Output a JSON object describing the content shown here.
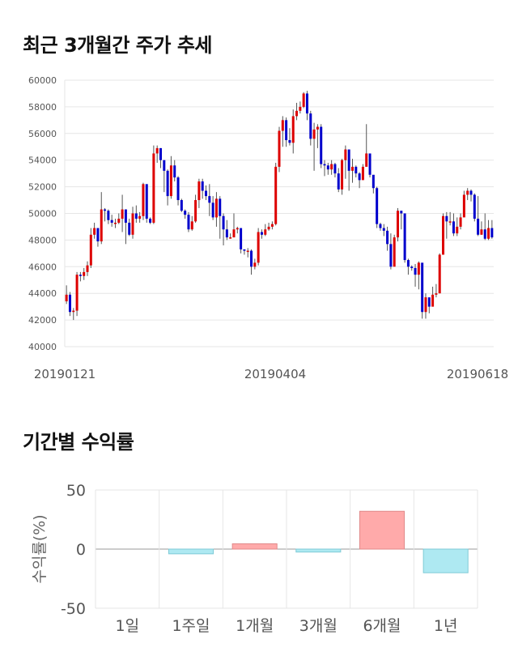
{
  "titles": {
    "price_chart": "최근 3개월간 주가 추세",
    "returns_chart": "기간별 수익률"
  },
  "chart_data": [
    {
      "type": "candlestick",
      "title": "최근 3개월간 주가 추세",
      "x_tick_labels": [
        "20190121",
        "20190404",
        "20190618"
      ],
      "ylim": [
        40000,
        60000
      ],
      "y_ticks": [
        40000,
        42000,
        44000,
        46000,
        48000,
        50000,
        52000,
        54000,
        56000,
        58000,
        60000
      ],
      "grid": true,
      "colors": {
        "up": "#dd0000",
        "down": "#0000cc",
        "wick": "#555555",
        "grid": "#e6e6e6"
      },
      "candles": [
        [
          43400,
          43900,
          44600,
          43200
        ],
        [
          43900,
          42600,
          44100,
          42300
        ],
        [
          42600,
          42700,
          42900,
          42000
        ],
        [
          42700,
          45400,
          45600,
          42300
        ],
        [
          45400,
          45300,
          45600,
          44900
        ],
        [
          45300,
          45600,
          45900,
          45000
        ],
        [
          45600,
          46100,
          46400,
          45300
        ],
        [
          46100,
          48400,
          48900,
          45900
        ],
        [
          48400,
          48900,
          49300,
          48100
        ],
        [
          48900,
          47900,
          48900,
          47500
        ],
        [
          47900,
          50300,
          51600,
          47700
        ],
        [
          50300,
          50200,
          50400,
          49400
        ],
        [
          50200,
          49500,
          50300,
          49200
        ],
        [
          49500,
          49300,
          49900,
          49000
        ],
        [
          49300,
          49300,
          49600,
          48900
        ],
        [
          49300,
          49600,
          50000,
          49200
        ],
        [
          49600,
          50300,
          51400,
          48600
        ],
        [
          50300,
          49300,
          50300,
          47700
        ],
        [
          49300,
          48400,
          49600,
          48300
        ],
        [
          48400,
          50000,
          50500,
          48100
        ],
        [
          50000,
          49600,
          50600,
          49300
        ],
        [
          49600,
          49800,
          50100,
          49300
        ],
        [
          49800,
          52200,
          52300,
          49500
        ],
        [
          52200,
          49600,
          49800,
          49300
        ],
        [
          49600,
          49300,
          49700,
          49200
        ],
        [
          49300,
          54500,
          55100,
          49200
        ],
        [
          54500,
          54900,
          55100,
          53800
        ],
        [
          54900,
          54000,
          54900,
          53400
        ],
        [
          54000,
          53200,
          53900,
          51600
        ],
        [
          53200,
          51300,
          53300,
          50600
        ],
        [
          51300,
          53600,
          54300,
          51100
        ],
        [
          53600,
          52700,
          54000,
          52400
        ],
        [
          52700,
          51000,
          52800,
          50600
        ],
        [
          51000,
          50200,
          51100,
          50100
        ],
        [
          50200,
          49900,
          50300,
          49600
        ],
        [
          49900,
          48800,
          50100,
          48600
        ],
        [
          48800,
          49400,
          49800,
          48700
        ],
        [
          49400,
          51000,
          51400,
          49300
        ],
        [
          51000,
          52400,
          52600,
          50400
        ],
        [
          52400,
          51700,
          52600,
          51100
        ],
        [
          51700,
          51300,
          52100,
          51000
        ],
        [
          51300,
          50800,
          52200,
          49800
        ],
        [
          50800,
          49700,
          51300,
          49500
        ],
        [
          49700,
          51100,
          51600,
          49000
        ],
        [
          51100,
          49800,
          51300,
          48100
        ],
        [
          49800,
          48800,
          50000,
          47600
        ],
        [
          48800,
          48200,
          49500,
          48000
        ],
        [
          48200,
          48200,
          48500,
          48100
        ],
        [
          48200,
          48800,
          50000,
          48200
        ],
        [
          48800,
          48900,
          49000,
          48500
        ],
        [
          48900,
          47300,
          47500,
          47000
        ],
        [
          47300,
          47200,
          47300,
          46900
        ],
        [
          47200,
          47200,
          47400,
          46700
        ],
        [
          47200,
          46000,
          47300,
          45400
        ],
        [
          46000,
          46300,
          46600,
          45800
        ],
        [
          46300,
          48600,
          48900,
          46100
        ],
        [
          48600,
          48400,
          48800,
          48100
        ],
        [
          48400,
          48800,
          49200,
          48300
        ],
        [
          48800,
          49000,
          49300,
          48700
        ],
        [
          49000,
          49200,
          49400,
          48800
        ],
        [
          49200,
          53500,
          53800,
          49100
        ],
        [
          53500,
          56200,
          56500,
          53100
        ],
        [
          56200,
          57000,
          57300,
          55000
        ],
        [
          57000,
          55500,
          57200,
          55000
        ],
        [
          55500,
          55300,
          56400,
          55100
        ],
        [
          55300,
          57300,
          57800,
          54500
        ],
        [
          57300,
          57700,
          58300,
          57000
        ],
        [
          57700,
          58000,
          58400,
          57500
        ],
        [
          58000,
          59000,
          59100,
          57900
        ],
        [
          59000,
          57500,
          59200,
          57000
        ],
        [
          57500,
          55600,
          57700,
          55100
        ],
        [
          55600,
          56300,
          56800,
          53200
        ],
        [
          56300,
          56500,
          56700,
          54900
        ],
        [
          56500,
          53700,
          56700,
          53400
        ],
        [
          53700,
          53600,
          54000,
          52800
        ],
        [
          53600,
          53300,
          53800,
          52900
        ],
        [
          53300,
          53700,
          54000,
          52900
        ],
        [
          53700,
          53000,
          53800,
          52700
        ],
        [
          53000,
          51800,
          53400,
          51600
        ],
        [
          51800,
          54000,
          54100,
          51400
        ],
        [
          54000,
          54800,
          55100,
          52600
        ],
        [
          54800,
          53200,
          54000,
          51700
        ],
        [
          53200,
          53500,
          54100,
          52300
        ],
        [
          53500,
          53000,
          53600,
          52700
        ],
        [
          53000,
          52500,
          53100,
          51900
        ],
        [
          52500,
          53500,
          53700,
          52700
        ],
        [
          53500,
          54500,
          56700,
          54200
        ],
        [
          54500,
          52900,
          53600,
          52700
        ],
        [
          52900,
          51900,
          52100,
          51500
        ],
        [
          51900,
          49200,
          52000,
          48900
        ],
        [
          49200,
          48900,
          49300,
          48700
        ],
        [
          48900,
          48700,
          49200,
          48300
        ],
        [
          48700,
          47700,
          49000,
          47200
        ],
        [
          47700,
          46000,
          48500,
          45800
        ],
        [
          46000,
          48200,
          48400,
          46200
        ],
        [
          48200,
          50200,
          50400,
          47900
        ],
        [
          50200,
          50000,
          50200,
          48800
        ],
        [
          50000,
          46500,
          48500,
          46300
        ],
        [
          46500,
          46000,
          46600,
          45400
        ],
        [
          46000,
          45900,
          46100,
          45700
        ],
        [
          45900,
          45400,
          46200,
          44500
        ],
        [
          45400,
          46300,
          46400,
          44300
        ],
        [
          46300,
          42600,
          46100,
          42100
        ],
        [
          42600,
          43700,
          44000,
          42100
        ],
        [
          43700,
          43000,
          43600,
          42500
        ],
        [
          43000,
          43900,
          44500,
          43100
        ],
        [
          43900,
          44000,
          44700,
          43700
        ],
        [
          44000,
          46900,
          47000,
          44000
        ],
        [
          46900,
          49800,
          50000,
          47500
        ],
        [
          49800,
          49400,
          50100,
          48100
        ],
        [
          49400,
          49400,
          50100,
          49100
        ],
        [
          49400,
          48500,
          50000,
          48300
        ],
        [
          48500,
          49000,
          49700,
          48300
        ],
        [
          49000,
          49700,
          50000,
          48800
        ],
        [
          49700,
          51400,
          51700,
          49900
        ],
        [
          51400,
          51700,
          51900,
          51000
        ],
        [
          51700,
          51400,
          51800,
          50900
        ],
        [
          51400,
          49600,
          51500,
          49400
        ],
        [
          49600,
          48400,
          51300,
          48300
        ],
        [
          48400,
          48800,
          49400,
          48400
        ],
        [
          48800,
          48100,
          50000,
          48000
        ],
        [
          48100,
          48900,
          49500,
          48000
        ],
        [
          48900,
          48200,
          49500,
          48100
        ]
      ]
    },
    {
      "type": "bar",
      "title": "기간별 수익률",
      "ylabel": "수익률(%)",
      "categories": [
        "1일",
        "1주일",
        "1개월",
        "3개월",
        "6개월",
        "1년"
      ],
      "values": [
        0,
        -4,
        4.5,
        -2.5,
        32,
        -20
      ],
      "ylim": [
        -50,
        50
      ],
      "y_ticks": [
        50,
        0,
        -50
      ],
      "grid": true,
      "colors": {
        "positive_fill": "#ffaaaa",
        "positive_stroke": "#e08a8a",
        "negative_fill": "#aee9f2",
        "negative_stroke": "#7fcad6",
        "grid": "#e6e6e6",
        "zero_line": "#999999"
      }
    }
  ]
}
